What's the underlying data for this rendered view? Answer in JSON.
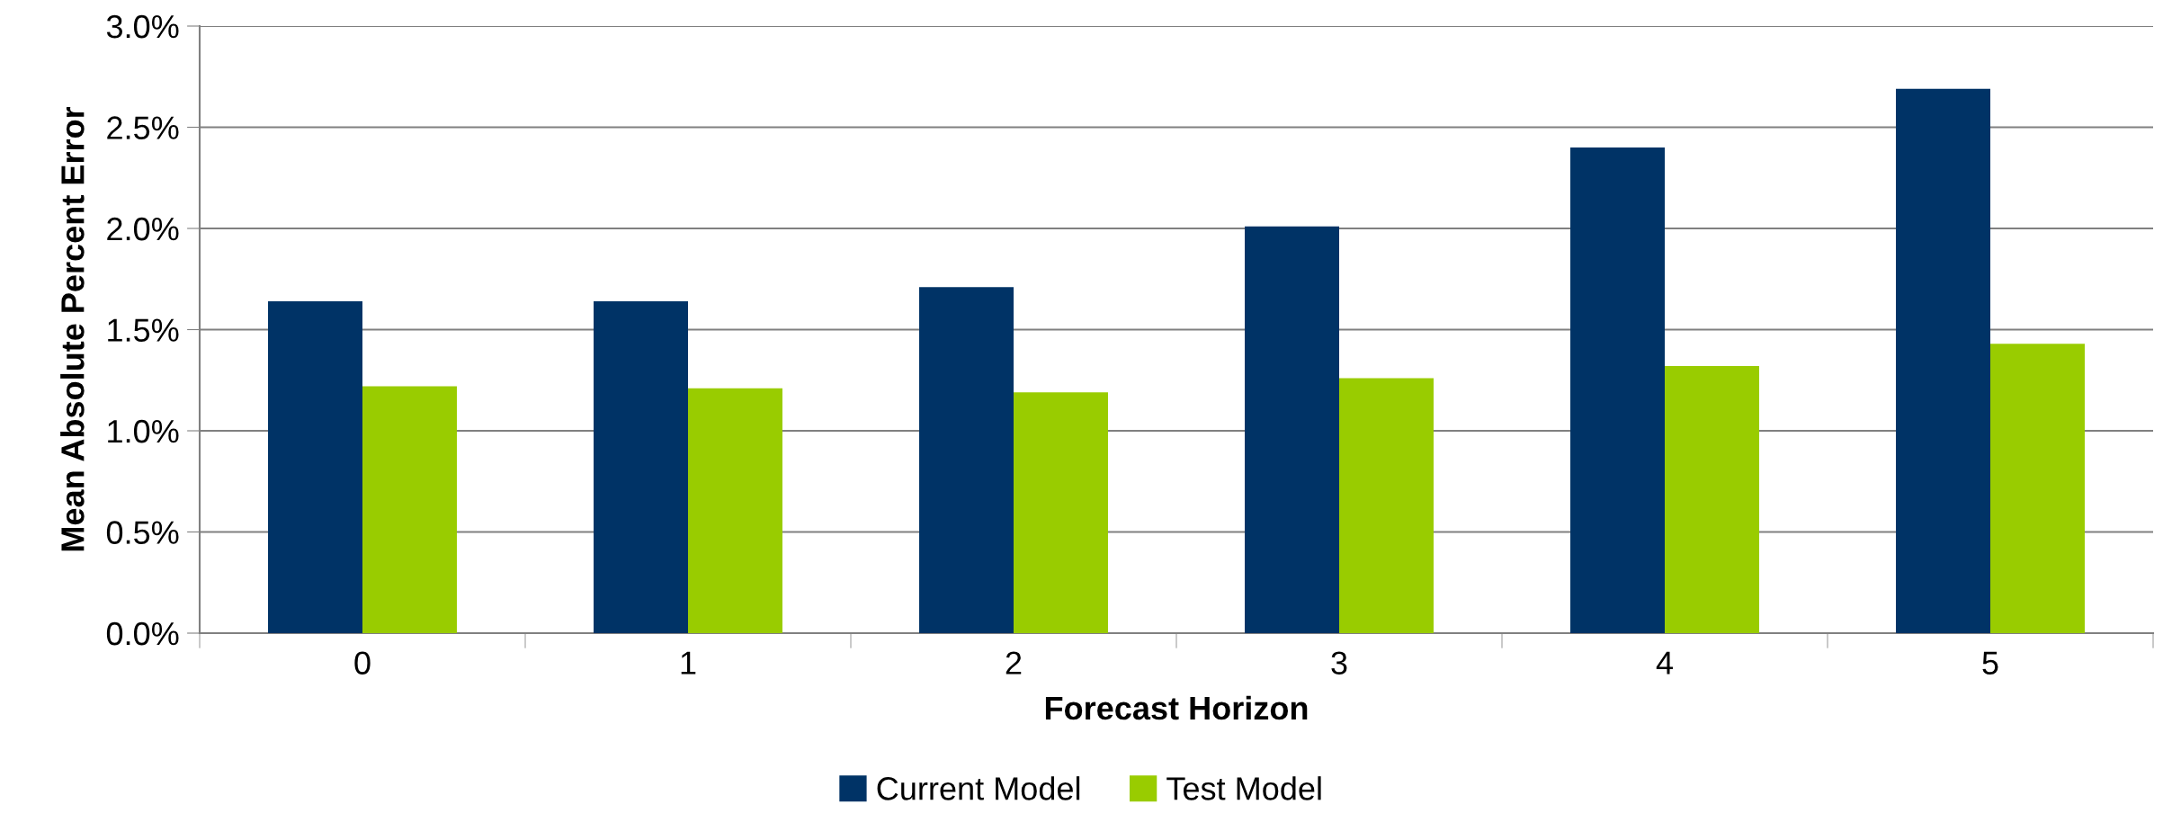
{
  "chart_data": {
    "type": "bar",
    "xlabel": "Forecast Horizon",
    "ylabel": "Mean Absolute Percent Error",
    "categories": [
      "0",
      "1",
      "2",
      "3",
      "4",
      "5"
    ],
    "series": [
      {
        "name": "Current Model",
        "color": "#003366",
        "values": [
          1.64,
          1.64,
          1.71,
          2.01,
          2.4,
          2.69
        ]
      },
      {
        "name": "Test Model",
        "color": "#99cc00",
        "values": [
          1.22,
          1.21,
          1.19,
          1.26,
          1.32,
          1.43
        ]
      }
    ],
    "ylim": [
      0,
      3
    ],
    "yticks": [
      {
        "value": 0,
        "label": "0.0%"
      },
      {
        "value": 0.5,
        "label": "0.5%"
      },
      {
        "value": 1,
        "label": "1.0%"
      },
      {
        "value": 1.5,
        "label": "1.5%"
      },
      {
        "value": 2,
        "label": "2.0%"
      },
      {
        "value": 2.5,
        "label": "2.5%"
      },
      {
        "value": 3,
        "label": "3.0%"
      }
    ],
    "grid": "y",
    "legend": "bottom"
  }
}
